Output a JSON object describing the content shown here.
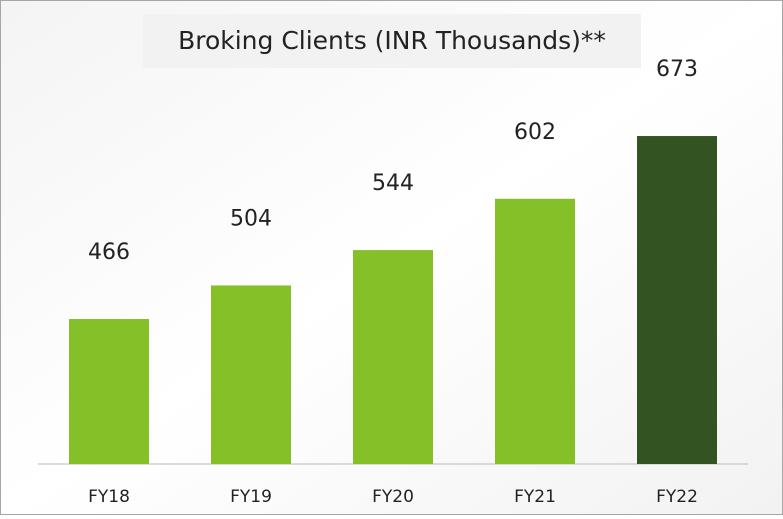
{
  "chart_data": {
    "type": "bar",
    "title": "Broking Clients (INR Thousands)**",
    "categories": [
      "FY18",
      "FY19",
      "FY20",
      "FY21",
      "FY22"
    ],
    "values": [
      466,
      504,
      544,
      602,
      673
    ],
    "colors": [
      "#86c029",
      "#86c029",
      "#86c029",
      "#86c029",
      "#335422"
    ],
    "ylim": [
      302,
      690
    ]
  }
}
